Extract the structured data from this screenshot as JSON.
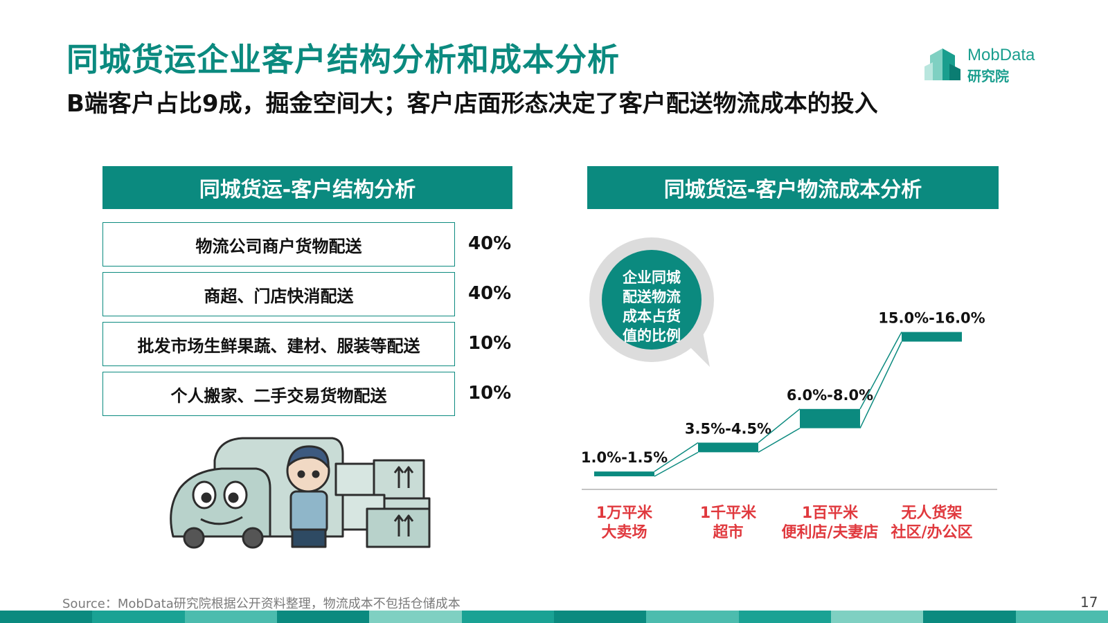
{
  "header": {
    "title": "同城货运企业客户结构分析和成本分析",
    "subtitle": "B端客户占比9成，掘金空间大；客户店面形态决定了客户配送物流成本的投入"
  },
  "logo": {
    "name": "MobData",
    "sub": "研究院"
  },
  "left_panel": {
    "heading": "同城货运-客户结构分析",
    "rows": [
      {
        "label": "物流公司商户货物配送",
        "percent": "40%"
      },
      {
        "label": "商超、门店快消配送",
        "percent": "40%"
      },
      {
        "label": "批发市场生鲜果蔬、建材、服装等配送",
        "percent": "10%"
      },
      {
        "label": "个人搬家、二手交易货物配送",
        "percent": "10%"
      }
    ]
  },
  "right_panel": {
    "heading": "同城货运-客户物流成本分析",
    "bubble_text": [
      "企业同城",
      "配送物流",
      "成本占货",
      "值的比例"
    ]
  },
  "chart_data": {
    "type": "bar",
    "categories": [
      [
        "1万平米",
        "大卖场"
      ],
      [
        "1千平米",
        "超市"
      ],
      [
        "1百平米",
        "便利店/夫妻店"
      ],
      [
        "无人货架",
        "社区/办公区"
      ]
    ],
    "ranges": [
      [
        1.0,
        1.5
      ],
      [
        3.5,
        4.5
      ],
      [
        6.0,
        8.0
      ],
      [
        15.0,
        16.0
      ]
    ],
    "value_labels": [
      "1.0%-1.5%",
      "3.5%-4.5%",
      "6.0%-8.0%",
      "15.0%-16.0%"
    ],
    "category_color": "#e0393e",
    "bar_color": "#0b8a7f"
  },
  "footer": {
    "source": "Source：MobData研究院根据公开资料整理，物流成本不包括仓储成本",
    "page": "17"
  },
  "colors": {
    "accent": "#0b8a7f",
    "category_red": "#e0393e"
  }
}
